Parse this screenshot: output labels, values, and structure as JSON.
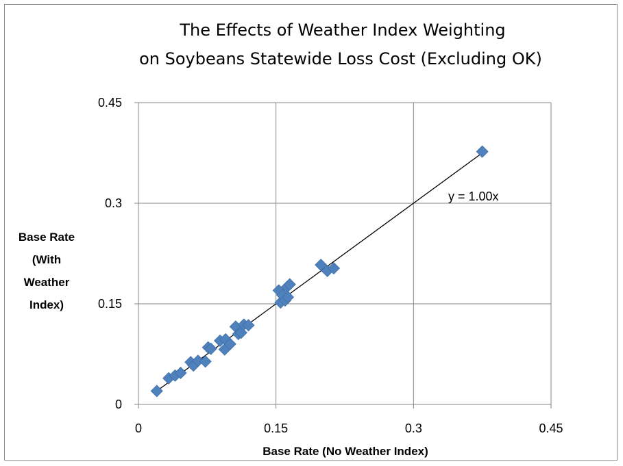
{
  "chart_data": {
    "type": "scatter",
    "title_lines": [
      "The Effects of Weather Index Weighting",
      "on Soybeans Statewide Loss Cost (Excluding OK)"
    ],
    "xlabel": "Base Rate (No Weather Index)",
    "ylabel_lines": [
      "Base Rate",
      "(With",
      "Weather",
      "Index)"
    ],
    "xlim": [
      0,
      0.45
    ],
    "ylim": [
      0,
      0.45
    ],
    "xticks": [
      0,
      0.15,
      0.3,
      0.45
    ],
    "yticks": [
      0,
      0.15,
      0.3,
      0.45
    ],
    "xtick_labels": [
      "0",
      "0.15",
      "0.3",
      "0.45"
    ],
    "ytick_labels": [
      "0",
      "0.15",
      "0.3",
      "0.45"
    ],
    "grid": true,
    "legend": "none",
    "marker": "diamond",
    "marker_color": "#4f81bd",
    "trendline": {
      "slope": 1.0,
      "intercept": 0,
      "x_range": [
        0.02,
        0.375
      ],
      "label": "y = 1.00x",
      "color": "#000000"
    },
    "points": [
      {
        "x": 0.02,
        "y": 0.02
      },
      {
        "x": 0.033,
        "y": 0.039
      },
      {
        "x": 0.04,
        "y": 0.043
      },
      {
        "x": 0.046,
        "y": 0.047
      },
      {
        "x": 0.057,
        "y": 0.063
      },
      {
        "x": 0.06,
        "y": 0.058
      },
      {
        "x": 0.065,
        "y": 0.065
      },
      {
        "x": 0.073,
        "y": 0.064
      },
      {
        "x": 0.076,
        "y": 0.085
      },
      {
        "x": 0.079,
        "y": 0.083
      },
      {
        "x": 0.089,
        "y": 0.095
      },
      {
        "x": 0.094,
        "y": 0.082
      },
      {
        "x": 0.095,
        "y": 0.097
      },
      {
        "x": 0.1,
        "y": 0.09
      },
      {
        "x": 0.106,
        "y": 0.116
      },
      {
        "x": 0.109,
        "y": 0.105
      },
      {
        "x": 0.112,
        "y": 0.107
      },
      {
        "x": 0.115,
        "y": 0.119
      },
      {
        "x": 0.12,
        "y": 0.118
      },
      {
        "x": 0.153,
        "y": 0.17
      },
      {
        "x": 0.155,
        "y": 0.152
      },
      {
        "x": 0.157,
        "y": 0.163
      },
      {
        "x": 0.16,
        "y": 0.155
      },
      {
        "x": 0.162,
        "y": 0.175
      },
      {
        "x": 0.163,
        "y": 0.16
      },
      {
        "x": 0.165,
        "y": 0.179
      },
      {
        "x": 0.199,
        "y": 0.208
      },
      {
        "x": 0.206,
        "y": 0.199
      },
      {
        "x": 0.213,
        "y": 0.203
      },
      {
        "x": 0.375,
        "y": 0.377
      }
    ]
  }
}
